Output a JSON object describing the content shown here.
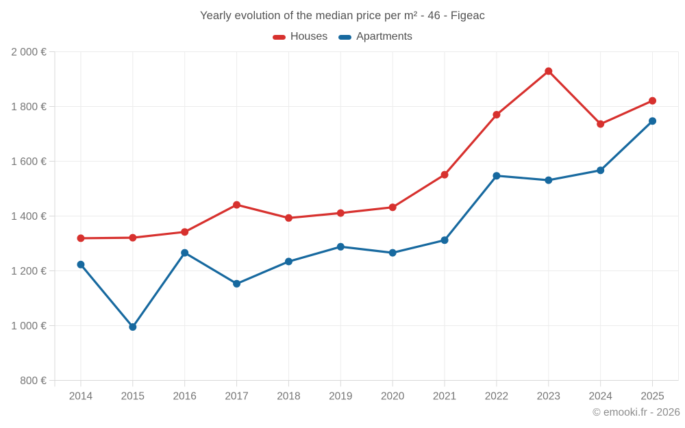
{
  "chart_data": {
    "type": "line",
    "title": "Yearly evolution of the median price per m² - 46 - Figeac",
    "x": [
      2014,
      2015,
      2016,
      2017,
      2018,
      2019,
      2020,
      2021,
      2022,
      2023,
      2024,
      2025
    ],
    "series": [
      {
        "name": "Houses",
        "color": "#d7312e",
        "values": [
          1319,
          1321,
          1342,
          1441,
          1393,
          1411,
          1432,
          1551,
          1770,
          1929,
          1736,
          1821
        ]
      },
      {
        "name": "Apartments",
        "color": "#17699f",
        "values": [
          1223,
          995,
          1266,
          1153,
          1234,
          1288,
          1266,
          1312,
          1547,
          1531,
          1567,
          1747
        ]
      }
    ],
    "ylabel": "",
    "xlabel": "",
    "ylim": [
      800,
      2000
    ],
    "y_ticks": [
      800,
      1000,
      1200,
      1400,
      1600,
      1800,
      2000
    ],
    "y_tick_suffix": "€",
    "grid": true,
    "legend_position": "top",
    "colors": {
      "grid": "#ececec",
      "axis": "#d8d8d8",
      "tick_label": "#757575",
      "title_text": "#525252",
      "legend_text": "#4f4f4f"
    }
  },
  "footer": {
    "copyright": "© emooki.fr - 2026"
  }
}
